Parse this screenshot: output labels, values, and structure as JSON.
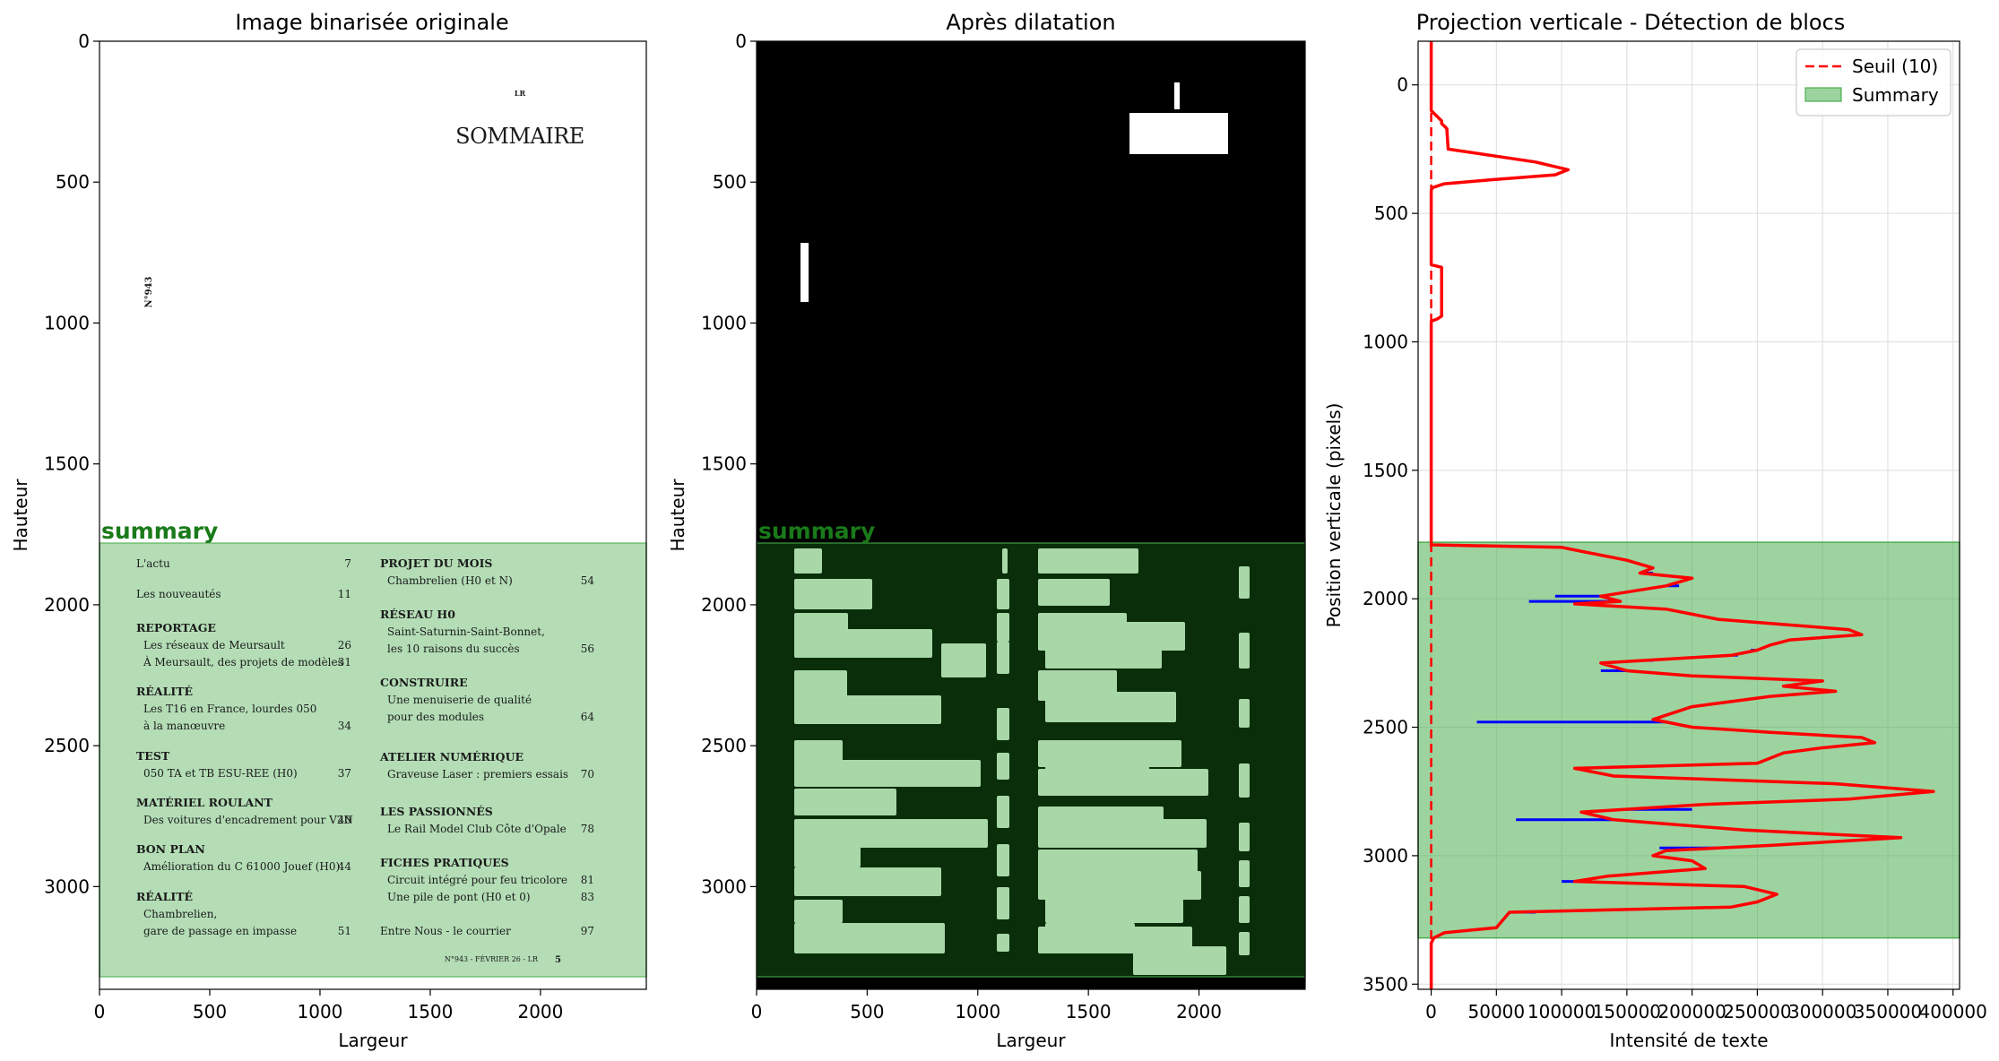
{
  "colors": {
    "summary_fill": "#4caf50",
    "summary_label": "#1a7a1a",
    "profile_line": "#ff0000",
    "raw_line": "#0000ff",
    "threshold": "#ff0000"
  },
  "panel1": {
    "title": "Image binarisée originale",
    "xlabel": "Largeur",
    "ylabel": "Hauteur",
    "summary_label": "summary",
    "xticks": [
      "0",
      "500",
      "1000",
      "1500",
      "2000"
    ],
    "yticks": [
      "0",
      "500",
      "1000",
      "1500",
      "2000",
      "2500",
      "3000"
    ],
    "doc": {
      "header_mark": "LR",
      "header_title": "SOMMAIRE",
      "issue_vertical": "N°943",
      "footer": "N°943 - FÉVRIER 26 - LR",
      "footer_page": "5",
      "left_col": [
        {
          "kind": "entry",
          "text": "L'actu",
          "page": "7"
        },
        {
          "kind": "entry",
          "text": "Les nouveautés",
          "page": "11"
        },
        {
          "kind": "head",
          "text": "REPORTAGE"
        },
        {
          "kind": "sub",
          "text": "Les réseaux de Meursault",
          "page": "26"
        },
        {
          "kind": "sub",
          "text": "À Meursault, des projets de modèles",
          "page": "31"
        },
        {
          "kind": "head",
          "text": "RÉALITÉ"
        },
        {
          "kind": "sub",
          "text": "Les T16 en France, lourdes 050",
          "page": ""
        },
        {
          "kind": "sub",
          "text": "à la manœuvre",
          "page": "34"
        },
        {
          "kind": "head",
          "text": "TEST"
        },
        {
          "kind": "sub",
          "text": "050 TA et TB ESU-REE (H0)",
          "page": "37"
        },
        {
          "kind": "head",
          "text": "MATÉRIEL ROULANT"
        },
        {
          "kind": "sub",
          "text": "Des voitures d'encadrement pour V2N",
          "page": "40"
        },
        {
          "kind": "head",
          "text": "BON PLAN"
        },
        {
          "kind": "sub",
          "text": "Amélioration du C 61000 Jouef (H0)",
          "page": "44"
        },
        {
          "kind": "head",
          "text": "RÉALITÉ"
        },
        {
          "kind": "sub",
          "text": "Chambrelien,",
          "page": ""
        },
        {
          "kind": "sub",
          "text": "gare de passage en impasse",
          "page": "51"
        }
      ],
      "right_col": [
        {
          "kind": "head",
          "text": "PROJET DU MOIS"
        },
        {
          "kind": "sub",
          "text": "Chambrelien  (H0 et N)",
          "page": "54"
        },
        {
          "kind": "head",
          "text": "RÉSEAU H0"
        },
        {
          "kind": "sub",
          "text": "Saint-Saturnin-Saint-Bonnet,",
          "page": ""
        },
        {
          "kind": "sub",
          "text": "les 10 raisons du succès",
          "page": "56"
        },
        {
          "kind": "head",
          "text": "CONSTRUIRE"
        },
        {
          "kind": "sub",
          "text": "Une menuiserie de qualité",
          "page": ""
        },
        {
          "kind": "sub",
          "text": "pour des modules",
          "page": "64"
        },
        {
          "kind": "head",
          "text": "ATELIER NUMÉRIQUE"
        },
        {
          "kind": "sub",
          "text": "Graveuse Laser : premiers essais",
          "page": "70"
        },
        {
          "kind": "head",
          "text": "LES PASSIONNÉS"
        },
        {
          "kind": "sub",
          "text": "Le Rail Model Club Côte d'Opale",
          "page": "78"
        },
        {
          "kind": "head",
          "text": "FICHES PRATIQUES"
        },
        {
          "kind": "sub",
          "text": "Circuit intégré pour feu tricolore",
          "page": "81"
        },
        {
          "kind": "sub",
          "text": "Une pile de pont (H0 et 0)",
          "page": "83"
        },
        {
          "kind": "entry",
          "text": "Entre Nous - le courrier",
          "page": "97"
        }
      ]
    }
  },
  "panel2": {
    "title": "Après dilatation",
    "xlabel": "Largeur",
    "ylabel": "Hauteur",
    "summary_label": "summary",
    "xticks": [
      "0",
      "500",
      "1000",
      "1500",
      "2000"
    ],
    "yticks": [
      "0",
      "500",
      "1000",
      "1500",
      "2000",
      "2500",
      "3000"
    ]
  },
  "panel3": {
    "title": "Projection verticale - Détection de blocs",
    "xlabel": "Intensité de texte",
    "ylabel": "Position verticale (pixels)",
    "xticks": [
      "0",
      "50000",
      "100000",
      "150000",
      "200000",
      "250000",
      "300000",
      "350000",
      "400000"
    ],
    "yticks": [
      "0",
      "500",
      "1000",
      "1500",
      "2000",
      "2500",
      "3000",
      "3500"
    ],
    "legend": {
      "threshold": "Seuil (10)",
      "summary": "Summary"
    }
  },
  "chart_data": {
    "type": "line",
    "title": "Projection verticale - Détection de blocs",
    "xlabel": "Intensité de texte",
    "ylabel": "Position verticale (pixels)",
    "xlim": [
      -10000,
      405000
    ],
    "ylim": [
      3520,
      -170
    ],
    "grid": true,
    "legend_position": "top-right",
    "threshold": {
      "name": "Seuil (10)",
      "x": 10
    },
    "summary_band": {
      "name": "Summary",
      "y": [
        1780,
        3320
      ]
    },
    "series": [
      {
        "role": "smoothed",
        "y": [
          -170,
          0,
          100,
          140,
          150,
          170,
          250,
          300,
          330,
          350,
          370,
          385,
          400,
          410,
          600,
          700,
          710,
          720,
          750,
          900,
          910,
          920,
          1000,
          1200,
          1400,
          1600,
          1780,
          1790,
          1800,
          1820,
          1850,
          1880,
          1900,
          1920,
          1950,
          1990,
          2010,
          2020,
          2040,
          2060,
          2080,
          2100,
          2120,
          2140,
          2160,
          2180,
          2200,
          2220,
          2250,
          2280,
          2300,
          2320,
          2340,
          2360,
          2380,
          2420,
          2470,
          2500,
          2520,
          2540,
          2560,
          2580,
          2600,
          2640,
          2660,
          2690,
          2720,
          2750,
          2780,
          2800,
          2830,
          2860,
          2900,
          2930,
          2960,
          2980,
          3000,
          3020,
          3050,
          3080,
          3100,
          3120,
          3150,
          3180,
          3200,
          3220,
          3250,
          3280,
          3300,
          3320,
          3340,
          3520
        ],
        "x": [
          0,
          0,
          0,
          8000,
          8000,
          12000,
          13000,
          80000,
          105000,
          95000,
          45000,
          10000,
          1000,
          0,
          0,
          0,
          8000,
          8000,
          8000,
          8000,
          5000,
          0,
          0,
          0,
          0,
          0,
          0,
          0,
          100000,
          120000,
          150000,
          170000,
          160000,
          200000,
          180000,
          130000,
          145000,
          110000,
          180000,
          200000,
          220000,
          270000,
          320000,
          330000,
          275000,
          260000,
          250000,
          230000,
          130000,
          150000,
          200000,
          300000,
          270000,
          310000,
          260000,
          200000,
          170000,
          200000,
          260000,
          330000,
          340000,
          300000,
          270000,
          250000,
          110000,
          140000,
          310000,
          385000,
          320000,
          210000,
          115000,
          140000,
          240000,
          360000,
          260000,
          180000,
          170000,
          200000,
          210000,
          135000,
          110000,
          240000,
          265000,
          250000,
          230000,
          60000,
          55000,
          50000,
          10000,
          2000,
          0,
          0
        ]
      },
      {
        "role": "raw",
        "y": [
          1900,
          1950,
          1990,
          2010,
          2150,
          2200,
          2220,
          2240,
          2280,
          2320,
          2340,
          2480,
          2660,
          2820,
          2860,
          2970,
          3100,
          3220
        ],
        "x": [
          170000,
          190000,
          95000,
          75000,
          300000,
          245000,
          235000,
          170000,
          130000,
          290000,
          280000,
          35000,
          120000,
          200000,
          65000,
          175000,
          100000,
          80000
        ]
      }
    ]
  }
}
